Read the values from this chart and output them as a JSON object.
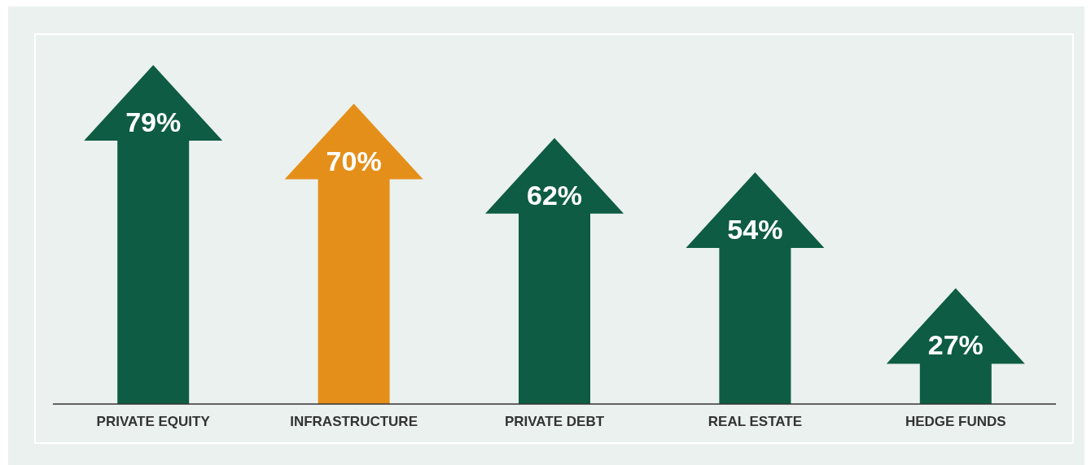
{
  "chart_data": {
    "type": "bar",
    "categories": [
      "PRIVATE EQUITY",
      "INFRASTRUCTURE",
      "PRIVATE DEBT",
      "REAL ESTATE",
      "HEDGE FUNDS"
    ],
    "values": [
      79,
      70,
      62,
      54,
      27
    ],
    "colors": [
      "#0e5c43",
      "#e58f1b",
      "#0e5c43",
      "#0e5c43",
      "#0e5c43"
    ],
    "value_labels": [
      "79%",
      "70%",
      "62%",
      "54%",
      "27%"
    ]
  }
}
